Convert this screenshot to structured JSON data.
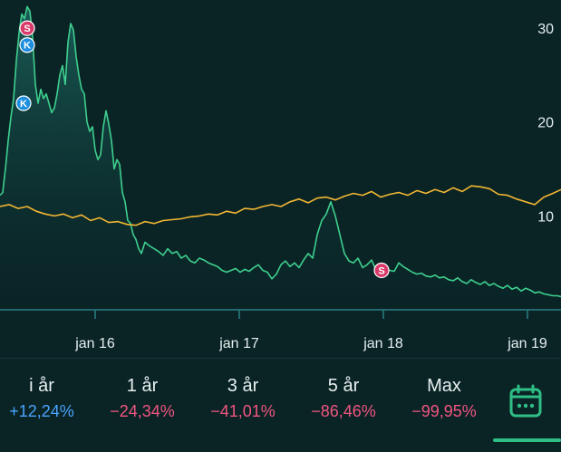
{
  "chart_data": {
    "type": "line",
    "y_ticks": [
      "30",
      "20",
      "10"
    ],
    "y_tick_values": [
      30,
      20,
      10
    ],
    "x_ticks": [
      "jan 16",
      "jan 17",
      "jan 18",
      "jan 19"
    ],
    "ylim": [
      0,
      33
    ],
    "grid": false,
    "series": [
      {
        "color": "#3ecf8e",
        "fill": true,
        "x": [
          0,
          3,
          6,
          9,
          12,
          15,
          18,
          21,
          24,
          27,
          30,
          33,
          36,
          39,
          42,
          45,
          48,
          51,
          54,
          57,
          60,
          63,
          66,
          69,
          72,
          75,
          78,
          81,
          84,
          87,
          90,
          93,
          96,
          99,
          102,
          105,
          108,
          111,
          114,
          117,
          120,
          123,
          126,
          129,
          132,
          135,
          138,
          141,
          144,
          147,
          150,
          153,
          156,
          160,
          165,
          170,
          175,
          180,
          185,
          190,
          195,
          200,
          205,
          210,
          215,
          220,
          225,
          230,
          235,
          240,
          245,
          250,
          255,
          260,
          265,
          270,
          275,
          280,
          285,
          290,
          295,
          300,
          305,
          310,
          315,
          320,
          325,
          330,
          335,
          340,
          345,
          350,
          355,
          360,
          365,
          370,
          375,
          380,
          385,
          390,
          395,
          400,
          405,
          410,
          415,
          420,
          425,
          430,
          435,
          440,
          445,
          450,
          455,
          460,
          465,
          470,
          475,
          480,
          485,
          490,
          495,
          500,
          505,
          510,
          515,
          520,
          525,
          530,
          535,
          540,
          545,
          550,
          555,
          560,
          565,
          570,
          575,
          580,
          585,
          590,
          595,
          600,
          605,
          610,
          615,
          619
        ],
        "y": [
          12.2,
          12.5,
          15.0,
          18.0,
          20.5,
          22.5,
          26.5,
          29.5,
          31.5,
          31.0,
          32.3,
          31.8,
          29.0,
          24.0,
          22.0,
          23.5,
          22.5,
          23.0,
          22.0,
          21.0,
          21.5,
          23.0,
          25.0,
          26.0,
          24.0,
          28.5,
          30.5,
          29.8,
          27.0,
          25.0,
          23.5,
          23.0,
          20.0,
          19.0,
          19.5,
          17.0,
          16.0,
          16.5,
          19.5,
          21.2,
          19.8,
          18.0,
          15.0,
          16.0,
          15.5,
          12.5,
          11.5,
          9.5,
          9.2,
          8.0,
          7.5,
          6.5,
          6.0,
          7.2,
          6.8,
          6.5,
          6.2,
          5.8,
          6.5,
          6.0,
          6.2,
          5.5,
          5.8,
          5.2,
          5.0,
          5.5,
          5.3,
          5.0,
          4.8,
          4.6,
          4.2,
          4.0,
          4.2,
          4.4,
          4.0,
          4.3,
          4.1,
          4.5,
          4.8,
          4.2,
          4.0,
          3.3,
          3.8,
          4.8,
          5.2,
          4.6,
          5.0,
          4.5,
          5.3,
          6.0,
          5.5,
          8.0,
          9.5,
          10.2,
          11.5,
          10.0,
          8.0,
          6.0,
          5.2,
          5.0,
          5.5,
          4.5,
          4.8,
          5.3,
          4.2,
          4.0,
          4.5,
          4.2,
          4.1,
          5.0,
          4.6,
          4.3,
          4.0,
          3.8,
          3.9,
          3.6,
          3.5,
          3.7,
          3.4,
          3.5,
          3.2,
          3.1,
          3.4,
          3.0,
          2.8,
          3.2,
          2.9,
          2.7,
          3.0,
          2.6,
          2.8,
          2.5,
          2.3,
          2.6,
          2.2,
          2.4,
          2.0,
          2.3,
          2.1,
          1.8,
          1.9,
          1.7,
          1.6,
          1.5,
          1.5,
          1.4
        ]
      },
      {
        "color": "#f2b632",
        "fill": false,
        "x": [
          0,
          10,
          20,
          30,
          40,
          50,
          60,
          70,
          80,
          90,
          100,
          110,
          120,
          130,
          140,
          150,
          160,
          170,
          180,
          190,
          200,
          210,
          220,
          230,
          240,
          250,
          260,
          270,
          280,
          290,
          300,
          310,
          320,
          330,
          340,
          350,
          360,
          370,
          380,
          390,
          400,
          410,
          420,
          430,
          440,
          450,
          460,
          470,
          480,
          490,
          500,
          510,
          520,
          530,
          540,
          550,
          560,
          570,
          580,
          590,
          600,
          610,
          619
        ],
        "y": [
          11.0,
          11.2,
          10.8,
          11.0,
          10.5,
          10.2,
          10.0,
          10.2,
          9.8,
          10.1,
          9.5,
          9.8,
          9.3,
          9.4,
          9.1,
          9.0,
          9.4,
          9.2,
          9.5,
          9.6,
          9.7,
          9.9,
          10.0,
          10.2,
          10.1,
          10.5,
          10.3,
          10.8,
          10.7,
          11.0,
          11.2,
          11.0,
          11.5,
          11.8,
          11.4,
          11.9,
          12.0,
          11.7,
          12.1,
          12.4,
          12.2,
          12.6,
          12.0,
          12.3,
          12.5,
          12.2,
          12.7,
          12.4,
          12.8,
          12.5,
          13.0,
          12.6,
          13.2,
          13.1,
          12.9,
          12.3,
          12.2,
          11.8,
          11.5,
          11.2,
          12.0,
          12.4,
          12.8
        ]
      }
    ],
    "markers": [
      {
        "label": "S",
        "x": 30,
        "y": 30.0,
        "color": "#d93a6a"
      },
      {
        "label": "K",
        "x": 30,
        "y": 28.2,
        "color": "#1e8fe0"
      },
      {
        "label": "K",
        "x": 26,
        "y": 22.0,
        "color": "#1e8fe0"
      },
      {
        "label": "S",
        "x": 421,
        "y": 4.2,
        "color": "#d93a6a"
      }
    ]
  },
  "ranges": [
    {
      "label": "i år",
      "value": "+12,24%",
      "color": "#4aa3ff"
    },
    {
      "label": "1 år",
      "value": "−24,34%",
      "color": "#f0557f"
    },
    {
      "label": "3 år",
      "value": "−41,01%",
      "color": "#f0557f"
    },
    {
      "label": "5 år",
      "value": "−86,46%",
      "color": "#f0557f"
    },
    {
      "label": "Max",
      "value": "−99,95%",
      "color": "#f0557f"
    }
  ],
  "accent": "#2fbf86",
  "calendar_icon": "calendar-icon"
}
